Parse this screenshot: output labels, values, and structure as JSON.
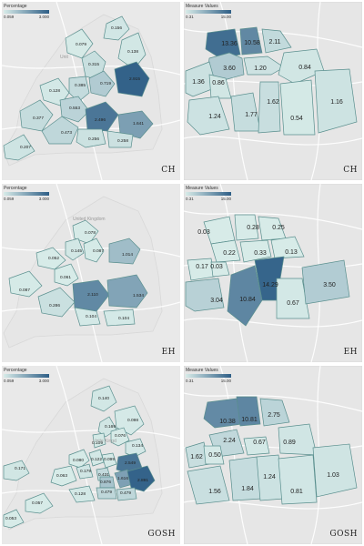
{
  "legend_colors": {
    "low": "#d7ebe8",
    "high": "#2e5e86",
    "border": "#5a8f8e",
    "road": "#ffffff",
    "land": "#e6e6e6"
  },
  "panels": [
    {
      "name": "CH-england",
      "title": "CH",
      "legend": {
        "title": "Percentage",
        "min": "0.059",
        "max": "3.000",
        "min_value": 0.059,
        "max_value": 3.0
      },
      "map_label": "Unit",
      "regions": [
        {
          "label": "0.156",
          "value": 0.156
        },
        {
          "label": "0.079",
          "value": 0.079
        },
        {
          "label": "0.138",
          "value": 0.138
        },
        {
          "label": "0.315",
          "value": 0.315
        },
        {
          "label": "0.128",
          "value": 0.128
        },
        {
          "label": "0.385",
          "value": 0.385
        },
        {
          "label": "0.719",
          "value": 0.719
        },
        {
          "label": "2.915",
          "value": 2.915
        },
        {
          "label": "0.553",
          "value": 0.553
        },
        {
          "label": "0.377",
          "value": 0.377
        },
        {
          "label": "2.496",
          "value": 2.496
        },
        {
          "label": "1.641",
          "value": 1.641
        },
        {
          "label": "0.473",
          "value": 0.473
        },
        {
          "label": "0.256",
          "value": 0.256
        },
        {
          "label": "0.258",
          "value": 0.258
        },
        {
          "label": "0.207",
          "value": 0.207
        }
      ]
    },
    {
      "name": "CH-london",
      "title": "CH",
      "legend": {
        "title": "Measure Values",
        "min": "0.31",
        "max": "15.00",
        "min_value": 0.31,
        "max_value": 15.0
      },
      "regions": [
        {
          "label": "13.36",
          "value": 13.36
        },
        {
          "label": "10.58",
          "value": 10.58
        },
        {
          "label": "2.11",
          "value": 2.11
        },
        {
          "label": "3.60",
          "value": 3.6
        },
        {
          "label": "1.20",
          "value": 1.2
        },
        {
          "label": "0.84",
          "value": 0.84
        },
        {
          "label": "1.36",
          "value": 1.36
        },
        {
          "label": "0.86",
          "value": 0.86
        },
        {
          "label": "1.24",
          "value": 1.24
        },
        {
          "label": "1.77",
          "value": 1.77
        },
        {
          "label": "1.62",
          "value": 1.62
        },
        {
          "label": "0.54",
          "value": 0.54
        },
        {
          "label": "1.16",
          "value": 1.16
        }
      ]
    },
    {
      "name": "EH-england",
      "title": "EH",
      "legend": {
        "title": "Percentage",
        "min": "0.059",
        "max": "3.000",
        "min_value": 0.059,
        "max_value": 3.0
      },
      "map_label": "United Kingdom",
      "regions": [
        {
          "label": "0.078",
          "value": 0.078
        },
        {
          "label": "0.145",
          "value": 0.145
        },
        {
          "label": "0.087",
          "value": 0.087
        },
        {
          "label": "0.052",
          "value": 0.052
        },
        {
          "label": "1.014",
          "value": 1.014
        },
        {
          "label": "0.087",
          "value": 0.087
        },
        {
          "label": "0.061",
          "value": 0.061
        },
        {
          "label": "2.110",
          "value": 2.11
        },
        {
          "label": "1.534",
          "value": 1.534
        },
        {
          "label": "0.286",
          "value": 0.286
        },
        {
          "label": "0.104",
          "value": 0.104
        },
        {
          "label": "0.104",
          "value": 0.104
        }
      ]
    },
    {
      "name": "EH-london",
      "title": "EH",
      "legend": {
        "title": "Measure Values",
        "min": "0.31",
        "max": "15.00",
        "min_value": 0.31,
        "max_value": 15.0
      },
      "regions": [
        {
          "label": "0.03",
          "value": 0.03
        },
        {
          "label": "0.28",
          "value": 0.28
        },
        {
          "label": "0.25",
          "value": 0.25
        },
        {
          "label": "0.22",
          "value": 0.22
        },
        {
          "label": "0.33",
          "value": 0.33
        },
        {
          "label": "0.13",
          "value": 0.13
        },
        {
          "label": "0.17",
          "value": 0.17
        },
        {
          "label": "0.03",
          "value": 0.03
        },
        {
          "label": "14.29",
          "value": 14.29
        },
        {
          "label": "3.04",
          "value": 3.04
        },
        {
          "label": "10.84",
          "value": 10.84
        },
        {
          "label": "0.67",
          "value": 0.67
        },
        {
          "label": "3.50",
          "value": 3.5
        }
      ]
    },
    {
      "name": "GOSH-england",
      "title": "GOSH",
      "legend": {
        "title": "Percentage",
        "min": "0.059",
        "max": "3.000",
        "min_value": 0.059,
        "max_value": 3.0
      },
      "map_label": "Unite Kingd",
      "regions": [
        {
          "label": "0.140",
          "value": 0.14
        },
        {
          "label": "0.098",
          "value": 0.098
        },
        {
          "label": "0.169",
          "value": 0.169
        },
        {
          "label": "0.076",
          "value": 0.076
        },
        {
          "label": "0.109",
          "value": 0.109
        },
        {
          "label": "0.134",
          "value": 0.134
        },
        {
          "label": "0.080",
          "value": 0.08
        },
        {
          "label": "0.122",
          "value": 0.122
        },
        {
          "label": "0.099",
          "value": 0.099
        },
        {
          "label": "0.179",
          "value": 0.179
        },
        {
          "label": "0.431",
          "value": 0.431
        },
        {
          "label": "2.549",
          "value": 2.549
        },
        {
          "label": "0.171",
          "value": 0.171
        },
        {
          "label": "0.063",
          "value": 0.063
        },
        {
          "label": "0.876",
          "value": 0.876
        },
        {
          "label": "1.616",
          "value": 1.616
        },
        {
          "label": "2.891",
          "value": 2.891
        },
        {
          "label": "0.479",
          "value": 0.479
        },
        {
          "label": "0.479",
          "value": 0.479
        },
        {
          "label": "0.128",
          "value": 0.128
        },
        {
          "label": "0.057",
          "value": 0.057
        },
        {
          "label": "0.053",
          "value": 0.053
        }
      ]
    },
    {
      "name": "GOSH-london",
      "title": "GOSH",
      "legend": {
        "title": "Measure Values",
        "min": "0.31",
        "max": "15.00",
        "min_value": 0.31,
        "max_value": 15.0
      },
      "regions": [
        {
          "label": "10.38",
          "value": 10.38
        },
        {
          "label": "10.81",
          "value": 10.81
        },
        {
          "label": "2.75",
          "value": 2.75
        },
        {
          "label": "2.24",
          "value": 2.24
        },
        {
          "label": "0.67",
          "value": 0.67
        },
        {
          "label": "0.89",
          "value": 0.89
        },
        {
          "label": "1.62",
          "value": 1.62
        },
        {
          "label": "0.50",
          "value": 0.5
        },
        {
          "label": "1.56",
          "value": 1.56
        },
        {
          "label": "1.84",
          "value": 1.84
        },
        {
          "label": "1.24",
          "value": 1.24
        },
        {
          "label": "0.81",
          "value": 0.81
        },
        {
          "label": "1.03",
          "value": 1.03
        }
      ]
    }
  ]
}
